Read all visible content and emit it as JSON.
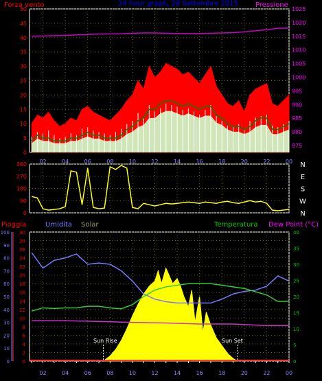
{
  "colors": {
    "background": "#000000",
    "frame": "#ffffff",
    "grid": "#606000",
    "wind_gust": "#ff0000",
    "wind_speed": "#008000",
    "wind_light": "#ccffcc",
    "pressure": "#cc00cc",
    "direction": "#ffff00",
    "rain": "#ff3333",
    "humidity": "#7777ff",
    "solar": "#ffff00",
    "temperature": "#33cc33",
    "dewpoint": "#cc33cc",
    "axis_text_left": "#ff0000",
    "axis_text_right": "#ff00ff",
    "axis_text_green": "#00cc00",
    "hour_text": "#8888ff",
    "title": "#0000ff"
  },
  "chart_data": [
    {
      "type": "line",
      "panel": "wind-pressure",
      "title": "24 hour graph, 28 Settembre 2015",
      "left_axis_label": "Forza vento",
      "right_axis_label": "Pressione",
      "y_left": {
        "ticks": [
          "0",
          "5",
          "10",
          "15",
          "20",
          "25",
          "30",
          "35",
          "40",
          "45",
          "50"
        ],
        "range": [
          0,
          50
        ]
      },
      "y_right": {
        "ticks": [
          "975",
          "980",
          "985",
          "990",
          "995",
          "1000",
          "1005",
          "1010",
          "1015",
          "1020",
          "1025"
        ],
        "range": [
          972.5,
          1025
        ]
      },
      "x": {
        "ticks": [
          "02",
          "04",
          "06",
          "08",
          "10",
          "12",
          "14",
          "16",
          "18",
          "20",
          "22",
          "00"
        ],
        "range": [
          0.8,
          24
        ]
      },
      "series": [
        {
          "role": "gust",
          "x": [
            1.0,
            1.5,
            2.0,
            2.5,
            3.0,
            3.5,
            4.0,
            4.5,
            5.0,
            5.5,
            6.0,
            6.5,
            7.0,
            7.5,
            8.0,
            8.5,
            9.0,
            9.5,
            10.0,
            10.5,
            11.0,
            11.5,
            12.0,
            12.5,
            13.0,
            13.5,
            14.0,
            14.5,
            15.0,
            15.5,
            16.0,
            16.5,
            17.0,
            17.5,
            18.0,
            18.5,
            19.0,
            19.5,
            20.0,
            20.5,
            21.0,
            21.5,
            22.0,
            22.5,
            23.0,
            23.5,
            24.0
          ],
          "values": [
            10,
            13,
            12,
            14,
            11,
            9,
            10,
            12,
            11,
            15,
            16,
            14,
            13,
            12,
            11,
            13,
            15,
            18,
            20,
            25,
            22,
            30,
            26,
            28,
            31,
            30,
            29,
            27,
            28,
            26,
            24,
            27,
            30,
            23,
            20,
            17,
            16,
            18,
            14,
            20,
            22,
            23,
            24,
            17,
            16,
            18,
            20
          ]
        },
        {
          "role": "mean",
          "x": [
            1.0,
            1.5,
            2.0,
            2.5,
            3.0,
            3.5,
            4.0,
            4.5,
            5.0,
            5.5,
            6.0,
            6.5,
            7.0,
            7.5,
            8.0,
            8.5,
            9.0,
            9.5,
            10.0,
            10.5,
            11.0,
            11.5,
            12.0,
            12.5,
            13.0,
            13.5,
            14.0,
            14.5,
            15.0,
            15.5,
            16.0,
            16.5,
            17.0,
            17.5,
            18.0,
            18.5,
            19.0,
            19.5,
            20.0,
            20.5,
            21.0,
            21.5,
            22.0,
            22.5,
            23.0,
            23.5,
            24.0
          ],
          "values": [
            4,
            6,
            5,
            5,
            4,
            4,
            4,
            5,
            5,
            6,
            7,
            6,
            6,
            5,
            5,
            5,
            6,
            8,
            9,
            11,
            12,
            15,
            15,
            17,
            18,
            18,
            17,
            16,
            17,
            16,
            15,
            16,
            16,
            13,
            12,
            10,
            9,
            9,
            8,
            9,
            11,
            12,
            12,
            8,
            8,
            9,
            10
          ]
        },
        {
          "role": "pressure",
          "x": [
            1,
            3,
            5,
            7,
            9,
            10,
            11,
            12,
            13,
            14,
            15,
            16,
            17,
            18,
            19,
            20,
            21,
            22,
            23,
            24
          ],
          "values": [
            1015.0,
            1015.2,
            1015.5,
            1015.8,
            1015.9,
            1016.1,
            1016.2,
            1016.2,
            1016.1,
            1016.0,
            1016.0,
            1016.0,
            1016.1,
            1016.2,
            1016.3,
            1016.6,
            1017.0,
            1017.4,
            1017.9,
            1018.0
          ]
        }
      ]
    },
    {
      "type": "line",
      "panel": "wind-direction",
      "y_left": {
        "ticks": [
          "0",
          "90",
          "180",
          "270",
          "360"
        ],
        "range": [
          0,
          360
        ]
      },
      "y_right_labels": [
        "N",
        "W",
        "S",
        "E",
        "N"
      ],
      "series": [
        {
          "role": "direction",
          "x": [
            1.0,
            1.5,
            2.0,
            2.5,
            3.0,
            3.5,
            4.0,
            4.5,
            5.0,
            5.5,
            6.0,
            6.5,
            7.0,
            7.5,
            8.0,
            8.5,
            9.0,
            9.5,
            10.0,
            10.5,
            11.0,
            11.5,
            12.0,
            12.5,
            13.0,
            13.5,
            14.0,
            14.5,
            15.0,
            15.5,
            16.0,
            16.5,
            17.0,
            17.5,
            18.0,
            18.5,
            19.0,
            19.5,
            20.0,
            20.5,
            21.0,
            21.5,
            22.0,
            22.5,
            23.0,
            23.5,
            24.0
          ],
          "values": [
            120,
            110,
            30,
            20,
            25,
            30,
            45,
            310,
            300,
            60,
            330,
            40,
            30,
            35,
            340,
            320,
            350,
            330,
            40,
            30,
            70,
            60,
            50,
            60,
            70,
            65,
            70,
            75,
            80,
            75,
            70,
            80,
            75,
            70,
            80,
            85,
            75,
            70,
            80,
            90,
            80,
            85,
            70,
            20,
            15,
            20,
            25
          ]
        }
      ]
    },
    {
      "type": "line",
      "panel": "climate",
      "labels": {
        "rain": "Pioggia",
        "humidity": "Umidita",
        "solar": "Solar",
        "temperature": "Temperatura",
        "dewpoint": "Dew Point (°C)"
      },
      "y_humidity": {
        "ticks": [
          "0",
          "10",
          "20",
          "30",
          "40",
          "50",
          "60",
          "70",
          "80",
          "90",
          "100"
        ],
        "range": [
          0,
          100
        ]
      },
      "y_rain": {
        "ticks": [
          "0",
          "2",
          "4",
          "6",
          "8",
          "10",
          "12",
          "14",
          "16",
          "18",
          "20",
          "22",
          "24",
          "26",
          "28",
          "30"
        ],
        "range": [
          0,
          30
        ]
      },
      "y_temp": {
        "ticks": [
          "0",
          "5",
          "10",
          "15",
          "20",
          "25",
          "30",
          "35",
          "40"
        ],
        "range": [
          0,
          40
        ]
      },
      "annotations": {
        "sunrise": "Sun Rise",
        "sunset": "Sun Set",
        "sunrise_x": 7.4,
        "sunset_x": 19.4
      },
      "series": [
        {
          "role": "humidity",
          "x": [
            1,
            2,
            3,
            4,
            5,
            6,
            7,
            8,
            9,
            10,
            11,
            12,
            13,
            14,
            15,
            16,
            17,
            18,
            19,
            20,
            21,
            22,
            23,
            24
          ],
          "values": [
            84,
            72,
            78,
            80,
            83,
            75,
            76,
            75,
            70,
            62,
            52,
            48,
            46,
            45,
            45,
            45,
            45,
            48,
            52,
            54,
            55,
            58,
            66,
            62
          ]
        },
        {
          "role": "temperature",
          "x": [
            1,
            2,
            3,
            4,
            5,
            6,
            7,
            8,
            9,
            10,
            11,
            12,
            13,
            14,
            15,
            16,
            17,
            18,
            19,
            20,
            21,
            22,
            23,
            24
          ],
          "values": [
            15.5,
            16.5,
            16.3,
            16.5,
            16.5,
            17.0,
            17.0,
            16.5,
            16.2,
            17.5,
            20.0,
            22.0,
            23.0,
            23.5,
            24.0,
            24.0,
            24.0,
            23.5,
            23.0,
            22.5,
            21.5,
            20.5,
            18.5,
            18.5
          ]
        },
        {
          "role": "dewpoint",
          "x": [
            1,
            4,
            7,
            10,
            13,
            16,
            19,
            22,
            24
          ],
          "values": [
            12.5,
            12.5,
            12.3,
            12.0,
            11.8,
            11.5,
            11.5,
            11.0,
            11.0
          ]
        },
        {
          "role": "solar",
          "x": [
            7.4,
            8.0,
            8.5,
            9.0,
            9.5,
            10.0,
            10.5,
            11.0,
            11.5,
            12.0,
            12.3,
            12.6,
            13.0,
            13.3,
            13.6,
            14.0,
            14.3,
            14.6,
            15.0,
            15.3,
            15.6,
            16.0,
            16.3,
            16.6,
            17.0,
            17.5,
            18.0,
            18.5,
            19.0,
            19.4
          ],
          "values": [
            0,
            4,
            9,
            16,
            25,
            35,
            44,
            52,
            58,
            62,
            70,
            60,
            72,
            66,
            60,
            64,
            58,
            50,
            42,
            55,
            30,
            50,
            22,
            38,
            28,
            18,
            12,
            6,
            2,
            0
          ]
        },
        {
          "role": "rain",
          "values": [
            0
          ]
        }
      ]
    }
  ]
}
